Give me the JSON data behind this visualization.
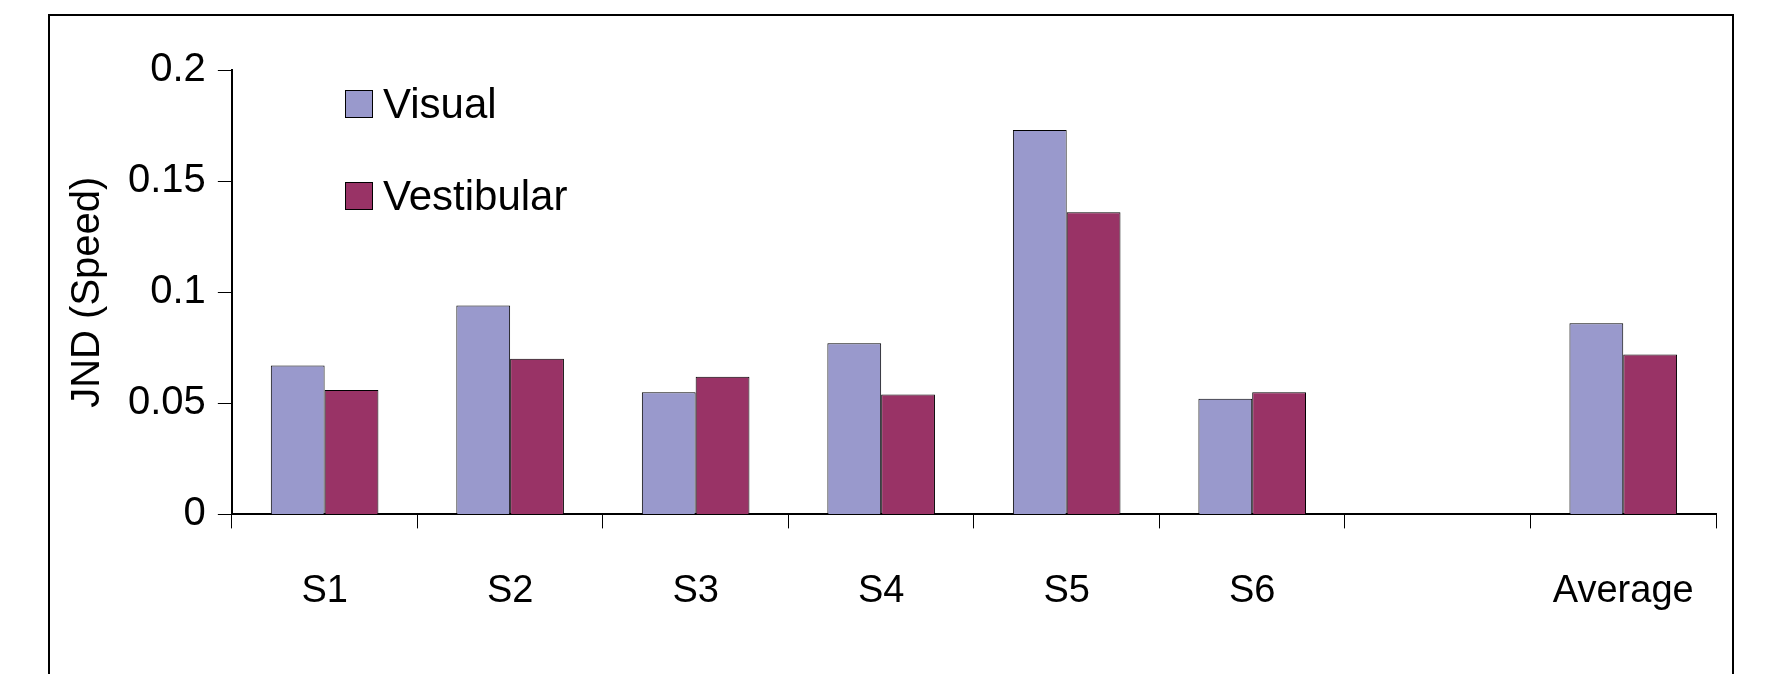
{
  "chart_data": {
    "type": "bar",
    "ylabel": "JND (Speed)",
    "categories": [
      "S1",
      "S2",
      "S3",
      "S4",
      "S5",
      "S6",
      null,
      "Average"
    ],
    "series": [
      {
        "name": "Visual",
        "color": "#9999cc",
        "values": [
          0.067,
          0.094,
          0.055,
          0.077,
          0.173,
          0.052,
          null,
          0.086
        ]
      },
      {
        "name": "Vestibular",
        "color": "#993366",
        "values": [
          0.056,
          0.07,
          0.062,
          0.054,
          0.136,
          0.055,
          null,
          0.072
        ]
      }
    ],
    "ylim": [
      0,
      0.2
    ],
    "yticks": [
      0,
      0.05,
      0.1,
      0.15,
      0.2
    ],
    "grid": false,
    "legend": "top left"
  }
}
